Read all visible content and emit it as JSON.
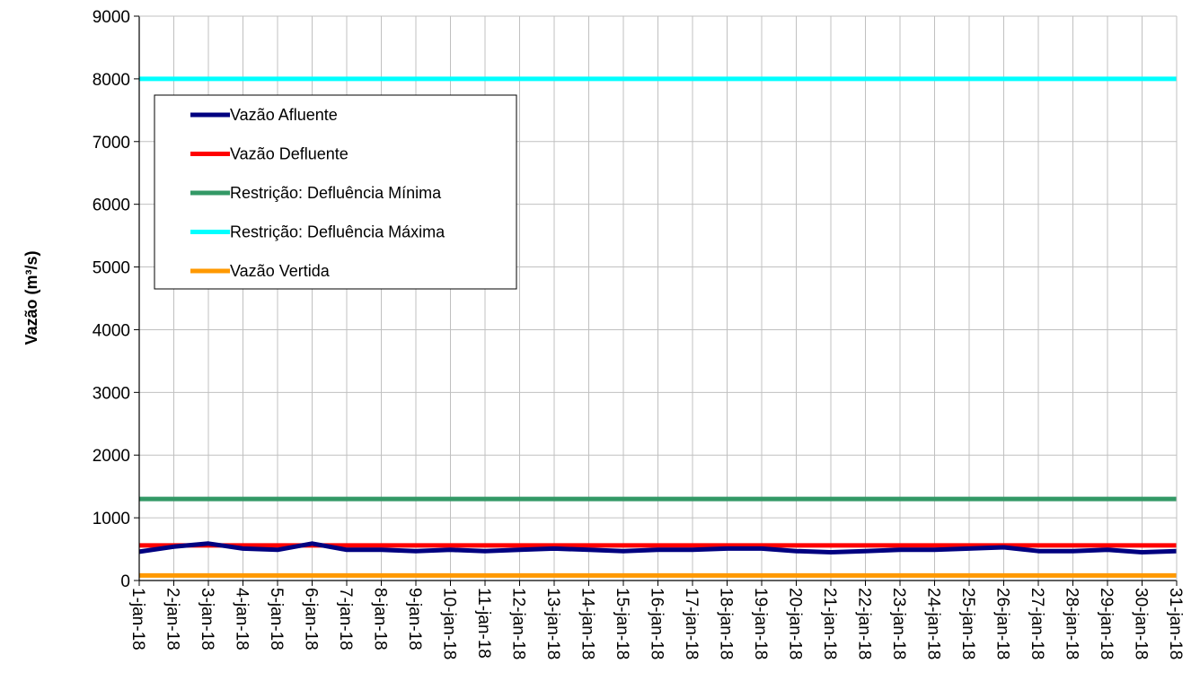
{
  "chart_data": {
    "type": "line",
    "title": "",
    "xlabel": "",
    "ylabel": "Vazão (m³/s)",
    "ylim": [
      0,
      9000
    ],
    "yticks": [
      0,
      1000,
      2000,
      3000,
      4000,
      5000,
      6000,
      7000,
      8000,
      9000
    ],
    "grid": true,
    "legend_position": "top-left",
    "x": [
      "1-jan-18",
      "2-jan-18",
      "3-jan-18",
      "4-jan-18",
      "5-jan-18",
      "6-jan-18",
      "7-jan-18",
      "8-jan-18",
      "9-jan-18",
      "10-jan-18",
      "11-jan-18",
      "12-jan-18",
      "13-jan-18",
      "14-jan-18",
      "15-jan-18",
      "16-jan-18",
      "17-jan-18",
      "18-jan-18",
      "19-jan-18",
      "20-jan-18",
      "21-jan-18",
      "22-jan-18",
      "23-jan-18",
      "24-jan-18",
      "25-jan-18",
      "26-jan-18",
      "27-jan-18",
      "28-jan-18",
      "29-jan-18",
      "30-jan-18",
      "31-jan-18"
    ],
    "series": [
      {
        "name": "Vazão Afluente",
        "color": "#000080",
        "values": [
          460,
          540,
          590,
          510,
          490,
          590,
          490,
          490,
          470,
          490,
          470,
          490,
          510,
          490,
          470,
          490,
          490,
          510,
          510,
          470,
          450,
          470,
          490,
          490,
          510,
          530,
          470,
          470,
          490,
          450,
          470
        ]
      },
      {
        "name": "Vazão Defluente",
        "color": "#ff0000",
        "values": [
          560,
          560,
          560,
          560,
          560,
          560,
          560,
          560,
          560,
          560,
          560,
          560,
          560,
          560,
          560,
          560,
          560,
          560,
          560,
          560,
          560,
          560,
          560,
          560,
          560,
          560,
          560,
          560,
          560,
          560,
          560
        ]
      },
      {
        "name": "Restrição: Defluência Mínima",
        "color": "#339966",
        "values": [
          1300,
          1300,
          1300,
          1300,
          1300,
          1300,
          1300,
          1300,
          1300,
          1300,
          1300,
          1300,
          1300,
          1300,
          1300,
          1300,
          1300,
          1300,
          1300,
          1300,
          1300,
          1300,
          1300,
          1300,
          1300,
          1300,
          1300,
          1300,
          1300,
          1300,
          1300
        ]
      },
      {
        "name": "Restrição: Defluência Máxima",
        "color": "#00ffff",
        "values": [
          8000,
          8000,
          8000,
          8000,
          8000,
          8000,
          8000,
          8000,
          8000,
          8000,
          8000,
          8000,
          8000,
          8000,
          8000,
          8000,
          8000,
          8000,
          8000,
          8000,
          8000,
          8000,
          8000,
          8000,
          8000,
          8000,
          8000,
          8000,
          8000,
          8000,
          8000
        ]
      },
      {
        "name": "Vazão Vertida",
        "color": "#ff9900",
        "values": [
          80,
          80,
          80,
          80,
          80,
          80,
          80,
          80,
          80,
          80,
          80,
          80,
          80,
          80,
          80,
          80,
          80,
          80,
          80,
          80,
          80,
          80,
          80,
          80,
          80,
          80,
          80,
          80,
          80,
          80,
          80
        ]
      }
    ]
  }
}
